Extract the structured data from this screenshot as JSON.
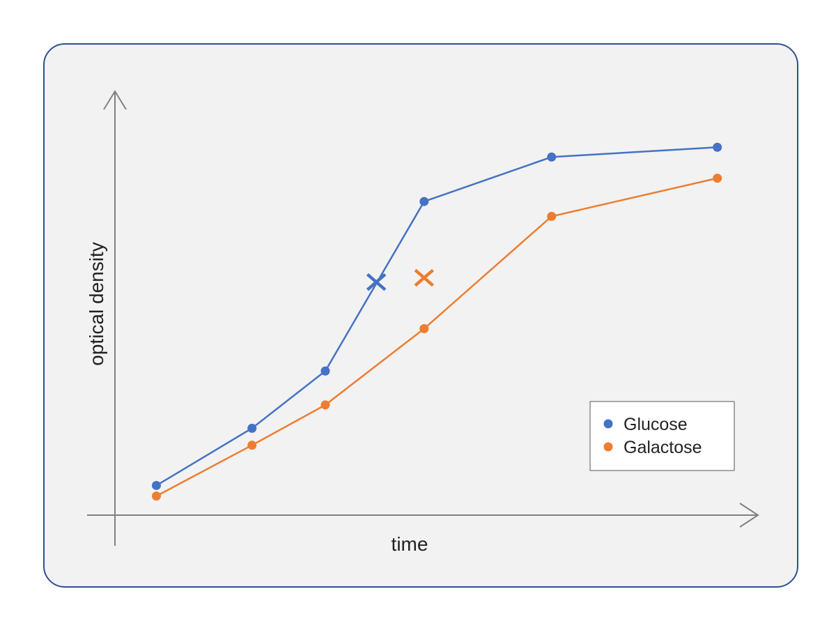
{
  "chart_data": {
    "type": "line",
    "title": "",
    "xlabel": "time",
    "ylabel": "optical density",
    "xlim": [
      0,
      10
    ],
    "ylim": [
      0,
      10
    ],
    "grid": false,
    "axis_ticks": false,
    "legend_position": "bottom-right",
    "x": [
      0.65,
      2.15,
      3.3,
      4.85,
      6.85,
      9.45
    ],
    "series": [
      {
        "name": "Glucose",
        "color": "#4472C4",
        "values": [
          0.7,
          2.05,
          3.4,
          7.4,
          8.45,
          8.68
        ],
        "marker_x": {
          "x": 4.1,
          "y": 5.5
        }
      },
      {
        "name": "Galactose",
        "color": "#ED7D31",
        "values": [
          0.45,
          1.65,
          2.6,
          4.4,
          7.05,
          7.95
        ],
        "marker_x": {
          "x": 4.85,
          "y": 5.6
        }
      }
    ]
  }
}
